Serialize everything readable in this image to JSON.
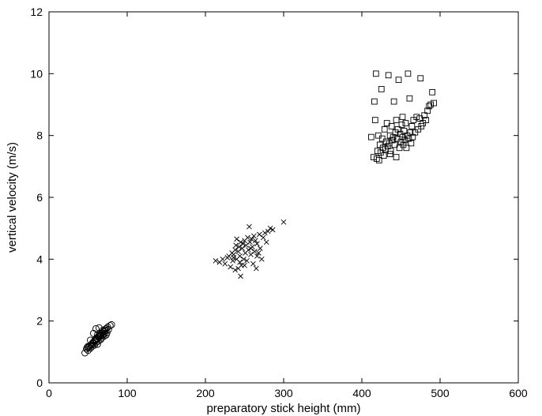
{
  "chart_data": {
    "type": "scatter",
    "xlabel": "preparatory stick height (mm)",
    "ylabel": "vertical velocity (m/s)",
    "xlim": [
      0,
      600
    ],
    "ylim": [
      0,
      12
    ],
    "x_ticks": [
      "0",
      "100",
      "200",
      "300",
      "400",
      "500",
      "600"
    ],
    "y_ticks": [
      "0",
      "2",
      "4",
      "6",
      "8",
      "10",
      "12"
    ],
    "grid": false,
    "legend": "none",
    "series": [
      {
        "marker": "circle",
        "points": [
          [
            46,
            0.97
          ],
          [
            48,
            1.1
          ],
          [
            49,
            1.15
          ],
          [
            50,
            1.18
          ],
          [
            51,
            1.15
          ],
          [
            52,
            1.2
          ],
          [
            53,
            1.12
          ],
          [
            54,
            1.22
          ],
          [
            55,
            1.25
          ],
          [
            55,
            1.18
          ],
          [
            56,
            1.3
          ],
          [
            57,
            1.28
          ],
          [
            58,
            1.35
          ],
          [
            58,
            1.22
          ],
          [
            59,
            1.4
          ],
          [
            60,
            1.38
          ],
          [
            60,
            1.3
          ],
          [
            61,
            1.45
          ],
          [
            62,
            1.42
          ],
          [
            62,
            1.55
          ],
          [
            63,
            1.5
          ],
          [
            63,
            1.35
          ],
          [
            64,
            1.48
          ],
          [
            65,
            1.55
          ],
          [
            65,
            1.6
          ],
          [
            66,
            1.52
          ],
          [
            67,
            1.58
          ],
          [
            67,
            1.45
          ],
          [
            68,
            1.62
          ],
          [
            69,
            1.55
          ],
          [
            69,
            1.7
          ],
          [
            70,
            1.65
          ],
          [
            71,
            1.6
          ],
          [
            71,
            1.72
          ],
          [
            72,
            1.68
          ],
          [
            73,
            1.75
          ],
          [
            74,
            1.62
          ],
          [
            75,
            1.8
          ],
          [
            76,
            1.72
          ],
          [
            78,
            1.85
          ],
          [
            80,
            1.88
          ],
          [
            60,
            1.75
          ],
          [
            64,
            1.78
          ],
          [
            57,
            1.6
          ],
          [
            53,
            1.38
          ],
          [
            50,
            1.05
          ],
          [
            62,
            1.25
          ],
          [
            66,
            1.4
          ],
          [
            70,
            1.5
          ],
          [
            73,
            1.55
          ]
        ]
      },
      {
        "marker": "x",
        "points": [
          [
            213,
            3.95
          ],
          [
            218,
            3.9
          ],
          [
            222,
            4.0
          ],
          [
            225,
            3.85
          ],
          [
            228,
            4.05
          ],
          [
            230,
            4.1
          ],
          [
            232,
            3.75
          ],
          [
            234,
            4.2
          ],
          [
            235,
            3.95
          ],
          [
            236,
            4.15
          ],
          [
            238,
            4.3
          ],
          [
            238,
            3.65
          ],
          [
            240,
            4.0
          ],
          [
            240,
            4.65
          ],
          [
            242,
            4.25
          ],
          [
            242,
            3.7
          ],
          [
            243,
            4.4
          ],
          [
            244,
            4.1
          ],
          [
            245,
            3.45
          ],
          [
            245,
            4.55
          ],
          [
            246,
            3.8
          ],
          [
            247,
            4.35
          ],
          [
            248,
            4.5
          ],
          [
            249,
            4.0
          ],
          [
            250,
            4.6
          ],
          [
            251,
            4.2
          ],
          [
            252,
            4.45
          ],
          [
            253,
            3.95
          ],
          [
            254,
            4.7
          ],
          [
            255,
            4.3
          ],
          [
            256,
            5.05
          ],
          [
            257,
            4.55
          ],
          [
            258,
            4.15
          ],
          [
            259,
            4.65
          ],
          [
            260,
            4.4
          ],
          [
            261,
            3.85
          ],
          [
            262,
            4.75
          ],
          [
            263,
            4.25
          ],
          [
            264,
            4.6
          ],
          [
            265,
            3.7
          ],
          [
            266,
            4.5
          ],
          [
            268,
            4.2
          ],
          [
            269,
            4.8
          ],
          [
            270,
            4.35
          ],
          [
            272,
            4.0
          ],
          [
            274,
            4.7
          ],
          [
            276,
            4.85
          ],
          [
            278,
            4.55
          ],
          [
            280,
            4.9
          ],
          [
            283,
            5.0
          ],
          [
            286,
            4.95
          ],
          [
            300,
            5.2
          ],
          [
            236,
            4.05
          ],
          [
            244,
            3.9
          ],
          [
            250,
            3.8
          ],
          [
            258,
            4.35
          ],
          [
            266,
            4.1
          ],
          [
            239,
            4.45
          ]
        ]
      },
      {
        "marker": "square",
        "points": [
          [
            412,
            7.95
          ],
          [
            415,
            7.3
          ],
          [
            416,
            9.1
          ],
          [
            417,
            8.5
          ],
          [
            418,
            10.0
          ],
          [
            419,
            7.25
          ],
          [
            420,
            7.5
          ],
          [
            421,
            8.0
          ],
          [
            422,
            7.2
          ],
          [
            423,
            7.7
          ],
          [
            424,
            7.45
          ],
          [
            425,
            9.5
          ],
          [
            426,
            7.9
          ],
          [
            427,
            7.6
          ],
          [
            428,
            7.35
          ],
          [
            429,
            8.2
          ],
          [
            430,
            7.55
          ],
          [
            431,
            7.8
          ],
          [
            432,
            8.4
          ],
          [
            433,
            7.65
          ],
          [
            434,
            9.95
          ],
          [
            435,
            7.75
          ],
          [
            436,
            8.0
          ],
          [
            437,
            7.5
          ],
          [
            438,
            8.3
          ],
          [
            439,
            7.85
          ],
          [
            440,
            7.95
          ],
          [
            441,
            9.1
          ],
          [
            442,
            7.7
          ],
          [
            443,
            8.1
          ],
          [
            444,
            7.3
          ],
          [
            445,
            7.9
          ],
          [
            446,
            8.2
          ],
          [
            447,
            9.8
          ],
          [
            448,
            7.6
          ],
          [
            449,
            8.05
          ],
          [
            450,
            7.8
          ],
          [
            451,
            8.35
          ],
          [
            452,
            7.95
          ],
          [
            453,
            7.7
          ],
          [
            454,
            8.15
          ],
          [
            455,
            7.85
          ],
          [
            456,
            8.4
          ],
          [
            457,
            7.6
          ],
          [
            458,
            8.0
          ],
          [
            459,
            10.0
          ],
          [
            460,
            7.9
          ],
          [
            461,
            9.2
          ],
          [
            462,
            8.1
          ],
          [
            463,
            7.75
          ],
          [
            464,
            8.3
          ],
          [
            465,
            7.95
          ],
          [
            466,
            8.5
          ],
          [
            468,
            8.1
          ],
          [
            470,
            8.6
          ],
          [
            472,
            8.2
          ],
          [
            474,
            8.55
          ],
          [
            475,
            9.85
          ],
          [
            476,
            8.3
          ],
          [
            478,
            8.4
          ],
          [
            480,
            8.65
          ],
          [
            482,
            8.5
          ],
          [
            484,
            8.8
          ],
          [
            486,
            8.95
          ],
          [
            488,
            9.0
          ],
          [
            490,
            9.4
          ],
          [
            492,
            9.05
          ],
          [
            444,
            8.5
          ],
          [
            436,
            7.4
          ],
          [
            452,
            8.6
          ]
        ]
      }
    ]
  }
}
